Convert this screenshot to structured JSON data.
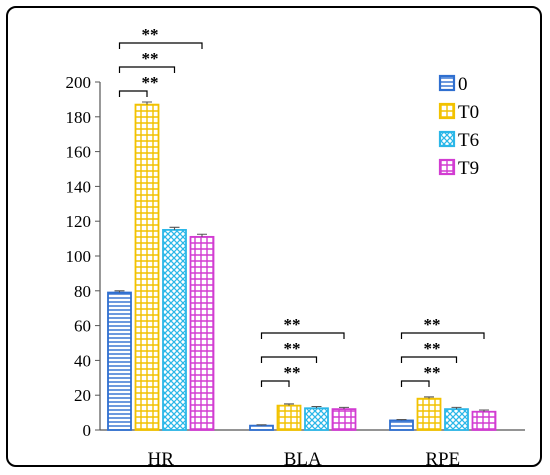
{
  "chart_data": {
    "type": "bar",
    "title": "",
    "xlabel": "",
    "ylabel": "",
    "ylim": [
      0,
      200
    ],
    "yticks": [
      0,
      20,
      40,
      60,
      80,
      100,
      120,
      140,
      160,
      180,
      200
    ],
    "categories": [
      "HR",
      "BLA",
      "RPE"
    ],
    "series": [
      {
        "name": "0",
        "values": [
          79,
          2.5,
          5.5
        ],
        "errors": [
          1.0,
          0.5,
          0.5
        ],
        "color": "#2f6fd0",
        "pattern": "hlines"
      },
      {
        "name": "T0",
        "values": [
          187,
          14,
          18
        ],
        "errors": [
          1.5,
          1.0,
          1.0
        ],
        "color": "#f2c200",
        "pattern": "grid"
      },
      {
        "name": "T6",
        "values": [
          115,
          12.5,
          12
        ],
        "errors": [
          1.5,
          1.0,
          1.0
        ],
        "color": "#2bb7e8",
        "pattern": "cross"
      },
      {
        "name": "T9",
        "values": [
          111,
          12,
          10.5
        ],
        "errors": [
          1.5,
          1.0,
          1.0
        ],
        "color": "#d23cd2",
        "pattern": "grid"
      }
    ],
    "significance_label": "**",
    "comparisons": [
      "0 vs T0",
      "0 vs T6",
      "0 vs T9"
    ],
    "legend_position": "top-right",
    "grid": false
  }
}
